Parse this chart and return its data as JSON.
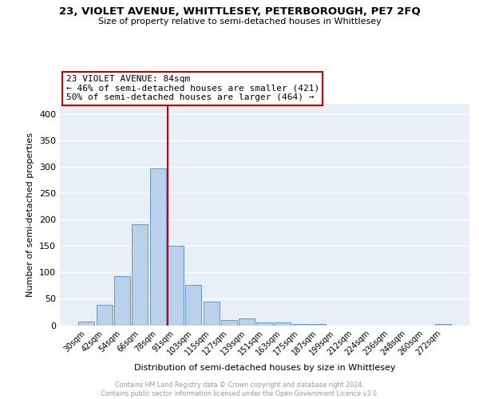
{
  "title": "23, VIOLET AVENUE, WHITTLESEY, PETERBOROUGH, PE7 2FQ",
  "subtitle": "Size of property relative to semi-detached houses in Whittlesey",
  "xlabel": "Distribution of semi-detached houses by size in Whittlesey",
  "ylabel": "Number of semi-detached properties",
  "categories": [
    "30sqm",
    "42sqm",
    "54sqm",
    "66sqm",
    "78sqm",
    "91sqm",
    "103sqm",
    "115sqm",
    "127sqm",
    "139sqm",
    "151sqm",
    "163sqm",
    "175sqm",
    "187sqm",
    "199sqm",
    "212sqm",
    "224sqm",
    "236sqm",
    "248sqm",
    "260sqm",
    "272sqm"
  ],
  "values": [
    7,
    38,
    93,
    192,
    297,
    150,
    77,
    44,
    10,
    13,
    5,
    5,
    3,
    3,
    0,
    0,
    0,
    0,
    0,
    0,
    3
  ],
  "bar_color": "#b8d0ea",
  "bar_edge_color": "#6699cc",
  "vline_x": 4.55,
  "vline_color": "#cc0000",
  "annotation_line1": "23 VIOLET AVENUE: 84sqm",
  "annotation_line2": "← 46% of semi-detached houses are smaller (421)",
  "annotation_line3": "50% of semi-detached houses are larger (464) →",
  "annotation_box_facecolor": "#ffffff",
  "annotation_box_edgecolor": "#cc0000",
  "ylim": [
    0,
    420
  ],
  "yticks": [
    0,
    50,
    100,
    150,
    200,
    250,
    300,
    350,
    400
  ],
  "plot_bg": "#e8eff8",
  "grid_color": "#ffffff",
  "footer": "Contains HM Land Registry data © Crown copyright and database right 2024.\nContains public sector information licensed under the Open Government Licence v3.0."
}
